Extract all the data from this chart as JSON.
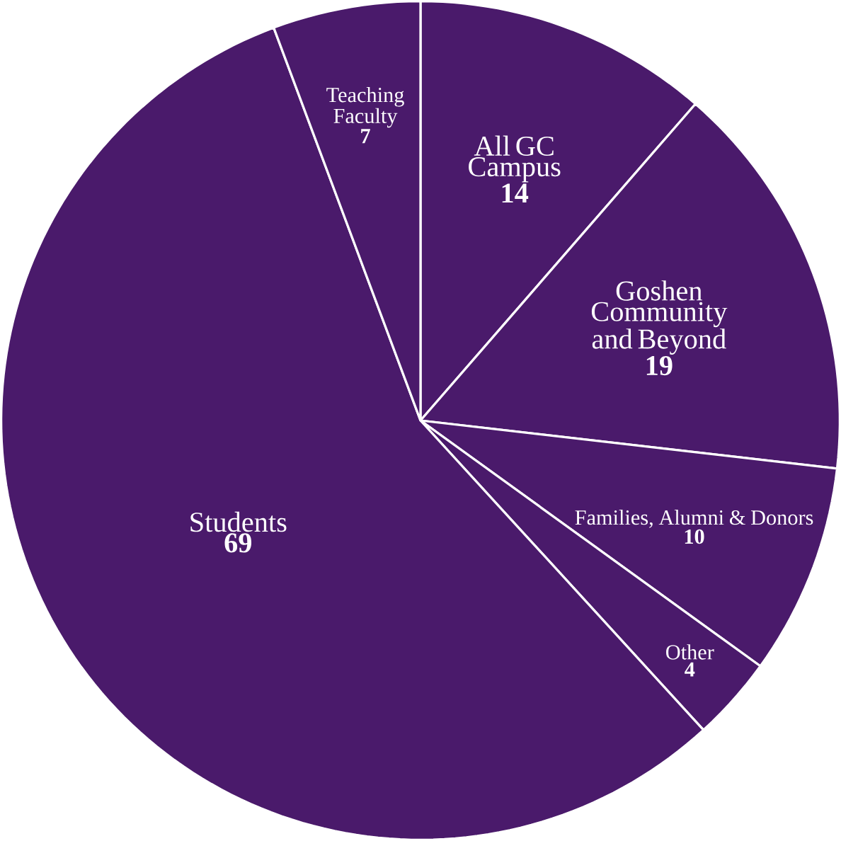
{
  "chart_data": {
    "type": "pie",
    "categories": [
      "All GC Campus",
      "Goshen Community and Beyond",
      "Families, Alumni & Donors",
      "Other",
      "Students",
      "Teaching Faculty"
    ],
    "values": [
      14,
      19,
      10,
      4,
      69,
      7
    ],
    "colors": [
      "#4a1a6b",
      "#4a1a6b",
      "#4a1a6b",
      "#4a1a6b",
      "#4a1a6b",
      "#4a1a6b"
    ],
    "data_labels": true
  }
}
